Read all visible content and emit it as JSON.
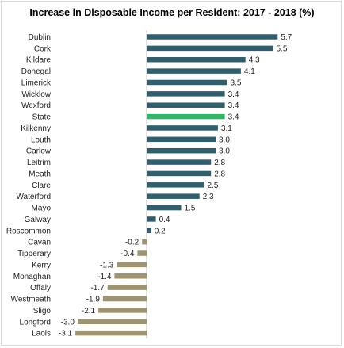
{
  "chart_data": {
    "type": "bar",
    "orientation": "horizontal",
    "title": "Increase in Disposable Income per Resident:  2017 - 2018  (%)",
    "xlabel": "",
    "ylabel": "",
    "xlim": [
      -3.2,
      5.8
    ],
    "grid": false,
    "legend": "none",
    "categories": [
      "Dublin",
      "Cork",
      "Kildare",
      "Donegal",
      "Limerick",
      "Wicklow",
      "Wexford",
      "State",
      "Kilkenny",
      "Louth",
      "Carlow",
      "Leitrim",
      "Meath",
      "Clare",
      "Waterford",
      "Mayo",
      "Galway",
      "Roscommon",
      "Cavan",
      "Tipperary",
      "Kerry",
      "Monaghan",
      "Offaly",
      "Westmeath",
      "Sligo",
      "Longford",
      "Laois"
    ],
    "values": [
      5.7,
      5.5,
      4.3,
      4.1,
      3.5,
      3.4,
      3.4,
      3.4,
      3.1,
      3.0,
      3.0,
      2.8,
      2.8,
      2.5,
      2.3,
      1.5,
      0.4,
      0.2,
      -0.2,
      -0.4,
      -1.3,
      -1.4,
      -1.7,
      -1.9,
      -2.1,
      -3.0,
      -3.1
    ],
    "value_labels": [
      "5.7",
      "5.5",
      "4.3",
      "4.1",
      "3.5",
      "3.4",
      "3.4",
      "3.4",
      "3.1",
      "3.0",
      "3.0",
      "2.8",
      "2.8",
      "2.5",
      "2.3",
      "1.5",
      "0.4",
      "0.2",
      "-0.2",
      "-0.4",
      "-1.3",
      "-1.4",
      "-1.7",
      "-1.9",
      "-2.1",
      "-3.0",
      "-3.1"
    ],
    "highlight_category": "State",
    "colors": {
      "positive": "#2f5e6e",
      "negative": "#9e9470",
      "highlight": "#2db864",
      "axis": "#bfbfbf"
    }
  }
}
